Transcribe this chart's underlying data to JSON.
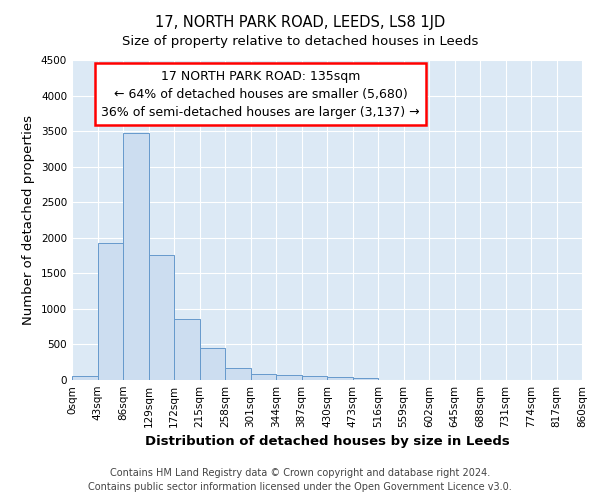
{
  "title_line1": "17, NORTH PARK ROAD, LEEDS, LS8 1JD",
  "title_line2": "Size of property relative to detached houses in Leeds",
  "xlabel": "Distribution of detached houses by size in Leeds",
  "ylabel": "Number of detached properties",
  "bar_values": [
    50,
    1920,
    3480,
    1760,
    860,
    450,
    170,
    90,
    65,
    50,
    40,
    35,
    0,
    0,
    0,
    0,
    0,
    0,
    0,
    0
  ],
  "bin_labels": [
    "0sqm",
    "43sqm",
    "86sqm",
    "129sqm",
    "172sqm",
    "215sqm",
    "258sqm",
    "301sqm",
    "344sqm",
    "387sqm",
    "430sqm",
    "473sqm",
    "516sqm",
    "559sqm",
    "602sqm",
    "645sqm",
    "688sqm",
    "731sqm",
    "774sqm",
    "817sqm",
    "860sqm"
  ],
  "bar_color": "#ccddf0",
  "bar_edgecolor": "#6699cc",
  "annotation_line1": "17 NORTH PARK ROAD: 135sqm",
  "annotation_line2": "← 64% of detached houses are smaller (5,680)",
  "annotation_line3": "36% of semi-detached houses are larger (3,137) →",
  "ylim": [
    0,
    4500
  ],
  "yticks": [
    0,
    500,
    1000,
    1500,
    2000,
    2500,
    3000,
    3500,
    4000,
    4500
  ],
  "background_color": "#ffffff",
  "plot_bg_color": "#dce9f5",
  "grid_color": "#ffffff",
  "footer_line1": "Contains HM Land Registry data © Crown copyright and database right 2024.",
  "footer_line2": "Contains public sector information licensed under the Open Government Licence v3.0.",
  "title_fontsize": 10.5,
  "subtitle_fontsize": 9.5,
  "axis_label_fontsize": 9.5,
  "tick_fontsize": 7.5,
  "annotation_fontsize": 9,
  "footer_fontsize": 7,
  "num_bins": 20
}
